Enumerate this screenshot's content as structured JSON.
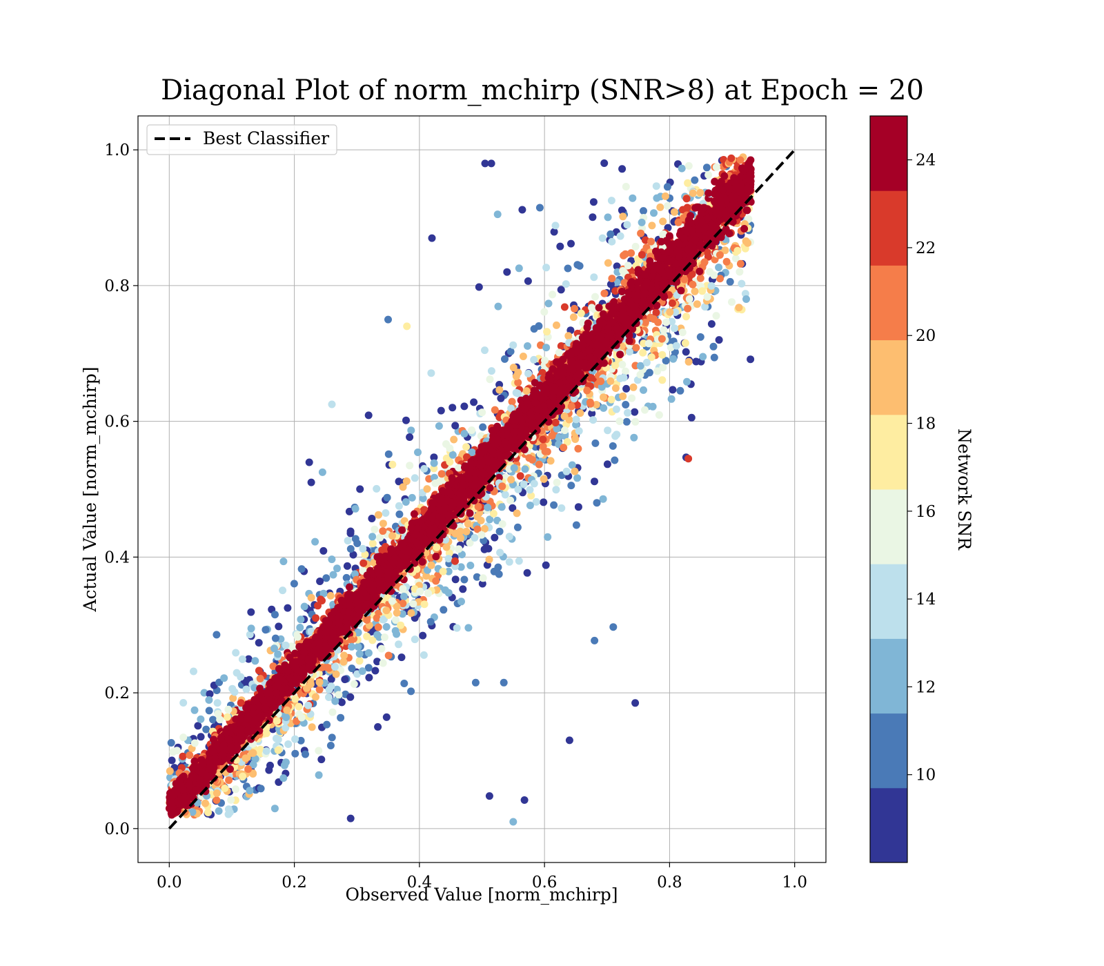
{
  "chart_data": {
    "type": "scatter",
    "title": "Diagonal Plot of norm_mchirp (SNR>8) at Epoch = 20",
    "xlabel": "Observed Value [norm_mchirp]",
    "ylabel": "Actual Value [norm_mchirp]",
    "xlim": [
      -0.05,
      1.05
    ],
    "ylim": [
      -0.05,
      1.05
    ],
    "x_ticks": [
      "0.0",
      "0.2",
      "0.4",
      "0.6",
      "0.8",
      "1.0"
    ],
    "y_ticks": [
      "0.0",
      "0.2",
      "0.4",
      "0.6",
      "0.8",
      "1.0"
    ],
    "grid": true,
    "legend": {
      "position": "upper-left",
      "entries": [
        "Best Classifier"
      ]
    },
    "reference_line": {
      "name": "Best Classifier",
      "x": [
        0,
        1
      ],
      "y": [
        0,
        1
      ],
      "style": "dashed",
      "color": "#000000"
    },
    "colorbar": {
      "label": "Network SNR",
      "range": [
        8,
        25
      ],
      "ticks": [
        "10",
        "12",
        "14",
        "16",
        "18",
        "20",
        "22",
        "24"
      ],
      "tick_values": [
        10,
        12,
        14,
        16,
        18,
        20,
        22,
        24
      ],
      "colormap": "RdYlBu_r",
      "colors": [
        "#313695",
        "#4a7ab7",
        "#80b6d6",
        "#bde0ec",
        "#eaf6e4",
        "#feeda1",
        "#fdbe70",
        "#f57d4a",
        "#d93a2b",
        "#a50026"
      ]
    },
    "point_cloud": {
      "description_stats": {
        "n_points_approx": 30000,
        "x_range": [
          0.02,
          0.9
        ],
        "y_range": [
          0.0,
          0.99
        ],
        "trend": "y ≈ x with slight positive offset, high-SNR points concentrated on the diagonal, low-SNR points spread wider"
      },
      "outliers": [
        {
          "x": 0.515,
          "y": 0.98,
          "snr": 9
        },
        {
          "x": 0.505,
          "y": 0.98,
          "snr": 9
        },
        {
          "x": 0.42,
          "y": 0.87,
          "snr": 9
        },
        {
          "x": 0.525,
          "y": 0.905,
          "snr": 12
        },
        {
          "x": 0.35,
          "y": 0.75,
          "snr": 11
        },
        {
          "x": 0.745,
          "y": 0.185,
          "snr": 9
        },
        {
          "x": 0.64,
          "y": 0.13,
          "snr": 9
        },
        {
          "x": 0.71,
          "y": 0.297,
          "snr": 10
        },
        {
          "x": 0.68,
          "y": 0.277,
          "snr": 11
        },
        {
          "x": 0.512,
          "y": 0.048,
          "snr": 9
        },
        {
          "x": 0.568,
          "y": 0.042,
          "snr": 9
        },
        {
          "x": 0.55,
          "y": 0.01,
          "snr": 13
        },
        {
          "x": 0.29,
          "y": 0.015,
          "snr": 9
        },
        {
          "x": 0.83,
          "y": 0.545,
          "snr": 22
        },
        {
          "x": 0.38,
          "y": 0.74,
          "snr": 18
        },
        {
          "x": 0.26,
          "y": 0.625,
          "snr": 14
        },
        {
          "x": 0.245,
          "y": 0.525,
          "snr": 12
        },
        {
          "x": 0.49,
          "y": 0.215,
          "snr": 10
        },
        {
          "x": 0.535,
          "y": 0.215,
          "snr": 11
        },
        {
          "x": 0.54,
          "y": 0.82,
          "snr": 9
        }
      ]
    }
  }
}
